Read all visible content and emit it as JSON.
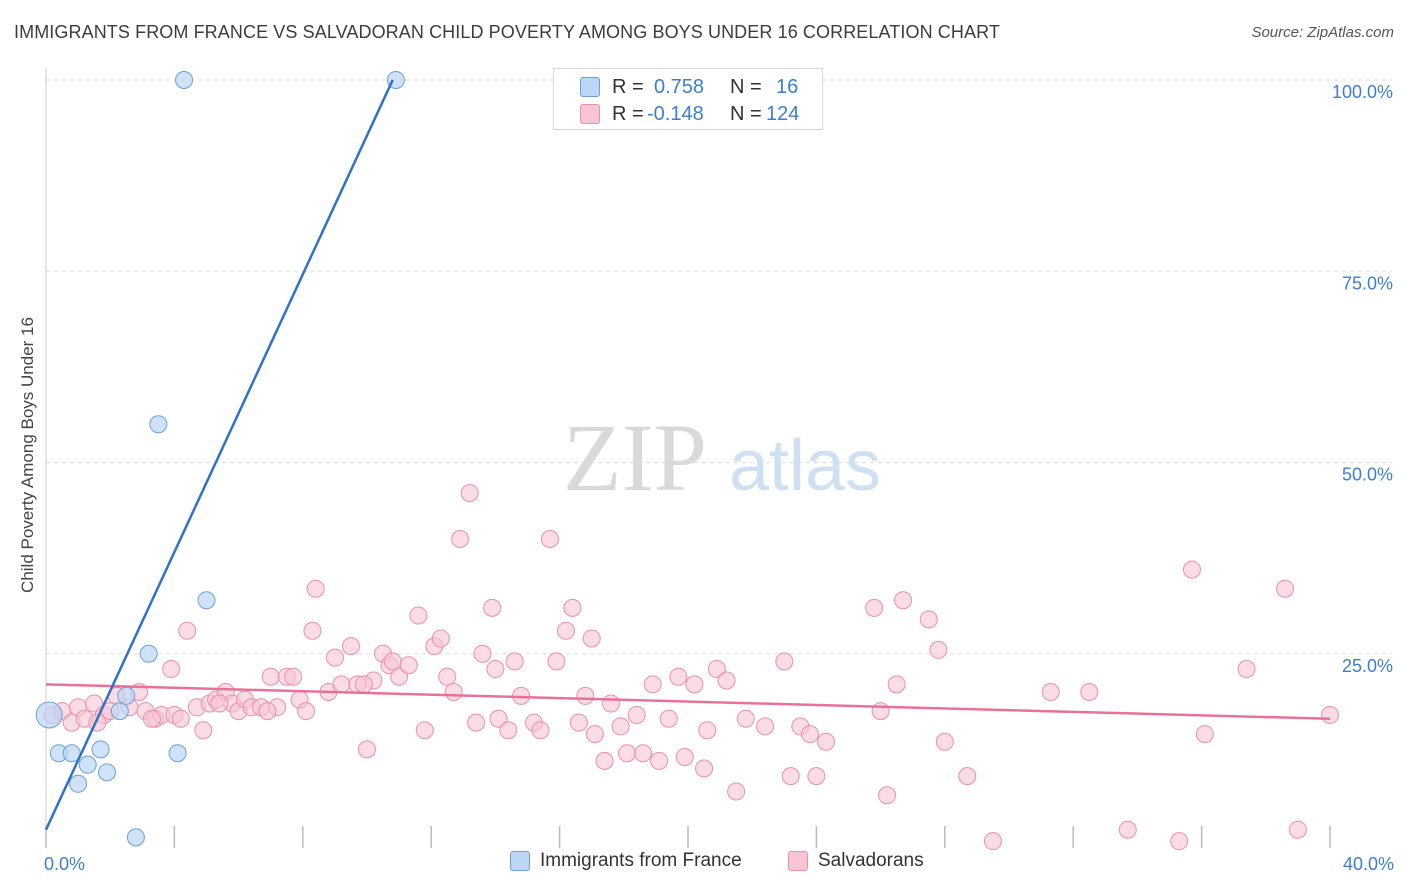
{
  "title": "IMMIGRANTS FROM FRANCE VS SALVADORAN CHILD POVERTY AMONG BOYS UNDER 16 CORRELATION CHART",
  "source": "Source: ZipAtlas.com",
  "watermark": {
    "part1": "ZIP",
    "part2": "atlas"
  },
  "colors": {
    "france_fill": "#bcd6f5",
    "france_stroke": "#6b9fd9",
    "france_line": "#2f72c8",
    "salv_fill": "#f7c5d4",
    "salv_stroke": "#eb8fab",
    "salv_line": "#e8719a",
    "tick_text": "#3d7fcf",
    "grid": "#dddddd"
  },
  "stats": {
    "rows": [
      {
        "r_label": "R =",
        "r_value": "0.758",
        "n_label": "N =",
        "n_value": "16"
      },
      {
        "r_label": "R =",
        "r_value": "-0.148",
        "n_label": "N =",
        "n_value": "124"
      }
    ]
  },
  "legend": {
    "france": "Immigrants from France",
    "salv": "Salvadorans"
  },
  "chart_data": {
    "type": "scatter",
    "title": "IMMIGRANTS FROM FRANCE VS SALVADORAN CHILD POVERTY AMONG BOYS UNDER 16 CORRELATION CHART",
    "xlabel": "",
    "ylabel": "Child Poverty Among Boys Under 16",
    "xlim": [
      0,
      40
    ],
    "ylim": [
      0,
      100
    ],
    "x_tick_labels": {
      "min": "0.0%",
      "max": "40.0%"
    },
    "y_ticks": [
      {
        "value": 25,
        "label": "25.0%"
      },
      {
        "value": 50,
        "label": "50.0%"
      },
      {
        "value": 75,
        "label": "75.0%"
      },
      {
        "value": 100,
        "label": "100.0%"
      }
    ],
    "grid": true,
    "legend_position": "bottom",
    "series": [
      {
        "name": "Immigrants from France",
        "points": [
          [
            0.1,
            17.0
          ],
          [
            0.4,
            12.0
          ],
          [
            0.8,
            12.0
          ],
          [
            1.0,
            8.0
          ],
          [
            1.3,
            10.5
          ],
          [
            1.7,
            12.5
          ],
          [
            1.9,
            9.5
          ],
          [
            2.3,
            17.5
          ],
          [
            2.5,
            19.5
          ],
          [
            2.8,
            1.0
          ],
          [
            3.2,
            25.0
          ],
          [
            3.5,
            55.0
          ],
          [
            4.1,
            12.0
          ],
          [
            4.3,
            100.0
          ],
          [
            5.0,
            32.0
          ],
          [
            10.9,
            100.0
          ]
        ],
        "trend": {
          "x": [
            0.0,
            10.8
          ],
          "y": [
            2.0,
            100.0
          ]
        }
      },
      {
        "name": "Salvadorans",
        "points": [
          [
            0.2,
            17.0
          ],
          [
            0.5,
            17.5
          ],
          [
            0.8,
            16.0
          ],
          [
            1.0,
            18.0
          ],
          [
            1.2,
            16.5
          ],
          [
            1.5,
            18.5
          ],
          [
            1.8,
            17.0
          ],
          [
            2.2,
            19.5
          ],
          [
            2.6,
            18.0
          ],
          [
            2.9,
            20.0
          ],
          [
            3.1,
            17.5
          ],
          [
            3.4,
            16.5
          ],
          [
            3.6,
            17.0
          ],
          [
            3.9,
            23.0
          ],
          [
            4.0,
            17.0
          ],
          [
            4.2,
            16.5
          ],
          [
            4.4,
            28.0
          ],
          [
            4.7,
            18.0
          ],
          [
            4.9,
            15.0
          ],
          [
            5.1,
            18.5
          ],
          [
            5.3,
            19.0
          ],
          [
            5.6,
            20.0
          ],
          [
            5.8,
            18.5
          ],
          [
            6.0,
            17.5
          ],
          [
            6.2,
            19.0
          ],
          [
            6.4,
            18.0
          ],
          [
            6.7,
            18.0
          ],
          [
            7.0,
            22.0
          ],
          [
            7.2,
            18.0
          ],
          [
            7.5,
            22.0
          ],
          [
            7.7,
            22.0
          ],
          [
            7.9,
            19.0
          ],
          [
            8.1,
            17.5
          ],
          [
            8.3,
            28.0
          ],
          [
            8.4,
            33.5
          ],
          [
            8.8,
            20.0
          ],
          [
            9.0,
            24.5
          ],
          [
            9.2,
            21.0
          ],
          [
            9.5,
            26.0
          ],
          [
            9.7,
            21.0
          ],
          [
            10.0,
            12.5
          ],
          [
            10.2,
            21.5
          ],
          [
            10.5,
            25.0
          ],
          [
            10.7,
            23.5
          ],
          [
            10.8,
            24.0
          ],
          [
            11.0,
            22.0
          ],
          [
            11.3,
            23.5
          ],
          [
            11.6,
            30.0
          ],
          [
            11.8,
            15.0
          ],
          [
            12.1,
            26.0
          ],
          [
            12.3,
            27.0
          ],
          [
            12.5,
            22.0
          ],
          [
            12.7,
            20.0
          ],
          [
            12.9,
            40.0
          ],
          [
            13.2,
            46.0
          ],
          [
            13.4,
            16.0
          ],
          [
            13.6,
            25.0
          ],
          [
            13.9,
            31.0
          ],
          [
            14.1,
            16.5
          ],
          [
            14.4,
            15.0
          ],
          [
            14.6,
            24.0
          ],
          [
            14.8,
            19.5
          ],
          [
            15.2,
            16.0
          ],
          [
            15.4,
            15.0
          ],
          [
            15.7,
            40.0
          ],
          [
            15.9,
            24.0
          ],
          [
            16.2,
            28.0
          ],
          [
            16.4,
            31.0
          ],
          [
            16.6,
            16.0
          ],
          [
            16.8,
            19.5
          ],
          [
            17.1,
            14.5
          ],
          [
            17.4,
            11.0
          ],
          [
            17.6,
            18.5
          ],
          [
            17.9,
            15.5
          ],
          [
            18.1,
            12.0
          ],
          [
            18.4,
            17.0
          ],
          [
            18.6,
            12.0
          ],
          [
            18.9,
            21.0
          ],
          [
            19.1,
            11.0
          ],
          [
            19.4,
            16.5
          ],
          [
            19.7,
            22.0
          ],
          [
            19.9,
            11.5
          ],
          [
            20.2,
            21.0
          ],
          [
            20.6,
            15.0
          ],
          [
            20.9,
            23.0
          ],
          [
            21.2,
            21.5
          ],
          [
            21.5,
            7.0
          ],
          [
            21.8,
            16.5
          ],
          [
            22.4,
            15.5
          ],
          [
            23.0,
            24.0
          ],
          [
            23.2,
            9.0
          ],
          [
            23.5,
            15.5
          ],
          [
            23.8,
            14.5
          ],
          [
            24.0,
            9.0
          ],
          [
            24.3,
            13.5
          ],
          [
            25.8,
            31.0
          ],
          [
            26.0,
            17.5
          ],
          [
            26.2,
            6.5
          ],
          [
            26.5,
            21.0
          ],
          [
            26.7,
            32.0
          ],
          [
            27.5,
            29.5
          ],
          [
            27.8,
            25.5
          ],
          [
            28.0,
            13.5
          ],
          [
            28.7,
            9.0
          ],
          [
            29.5,
            0.5
          ],
          [
            31.3,
            20.0
          ],
          [
            32.5,
            20.0
          ],
          [
            33.7,
            2.0
          ],
          [
            35.3,
            0.5
          ],
          [
            35.7,
            36.0
          ],
          [
            36.1,
            14.5
          ],
          [
            37.4,
            23.0
          ],
          [
            38.6,
            33.5
          ],
          [
            39.0,
            2.0
          ],
          [
            40.0,
            17.0
          ],
          [
            5.4,
            18.5
          ],
          [
            3.3,
            16.5
          ],
          [
            2.0,
            17.5
          ],
          [
            1.6,
            16.0
          ],
          [
            6.9,
            17.5
          ],
          [
            9.9,
            21.0
          ],
          [
            14.0,
            23.0
          ],
          [
            20.5,
            10.0
          ],
          [
            17.0,
            27.0
          ]
        ],
        "trend": {
          "x": [
            0.0,
            40.0
          ],
          "y": [
            21.0,
            16.5
          ]
        }
      }
    ]
  }
}
